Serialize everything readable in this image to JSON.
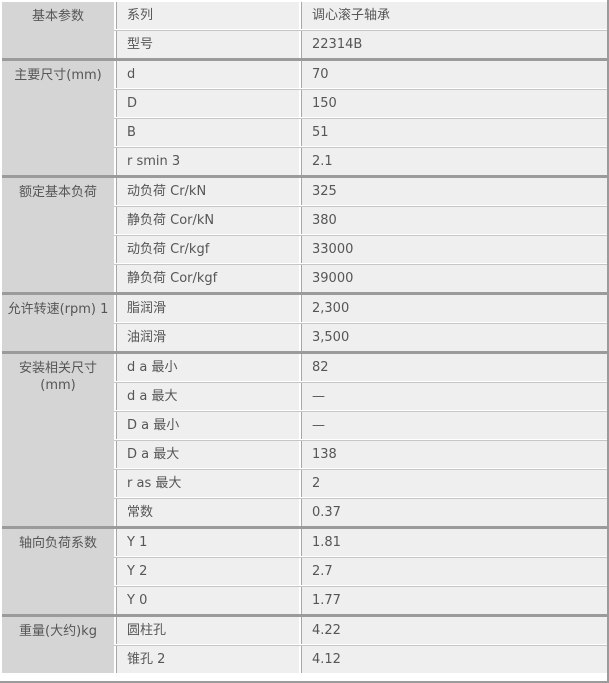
{
  "table": {
    "title": "bearing-spec-table",
    "product": {
      "series": "调心滚子轴承",
      "model": "22314B"
    },
    "colors": {
      "category_bg": "#d5d5d5",
      "cell_bg": "#efefef",
      "section_divider": "#9b9b9b",
      "row_divider": "#c6c6c6",
      "column_divider": "#a7a7a7",
      "text": "#565656",
      "gap": "#ffffff"
    },
    "sections": [
      {
        "category": "基本参数",
        "rows": [
          {
            "param": "系列",
            "value": "调心滚子轴承"
          },
          {
            "param": "型号",
            "value": "22314B"
          }
        ]
      },
      {
        "category": "主要尺寸(mm)",
        "rows": [
          {
            "param": "d",
            "value": "70"
          },
          {
            "param": "D",
            "value": "150"
          },
          {
            "param": "B",
            "value": "51"
          },
          {
            "param": "r smin 3",
            "value": "2.1"
          }
        ]
      },
      {
        "category": "额定基本负荷",
        "rows": [
          {
            "param": "动负荷 Cr/kN",
            "value": "325"
          },
          {
            "param": "静负荷 Cor/kN",
            "value": "380"
          },
          {
            "param": "动负荷 Cr/kgf",
            "value": "33000"
          },
          {
            "param": "静负荷 Cor/kgf",
            "value": "39000"
          }
        ]
      },
      {
        "category": "允许转速(rpm) 1",
        "rows": [
          {
            "param": "脂润滑",
            "value": "2,300"
          },
          {
            "param": "油润滑",
            "value": "3,500"
          }
        ]
      },
      {
        "category": "安装相关尺寸 (mm)",
        "rows": [
          {
            "param": "d a 最小",
            "value": "82"
          },
          {
            "param": "d a 最大",
            "value": "—"
          },
          {
            "param": "D a 最小",
            "value": "—"
          },
          {
            "param": "D a 最大",
            "value": "138"
          },
          {
            "param": "r as 最大",
            "value": "2"
          },
          {
            "param": "常数",
            "value": "0.37"
          }
        ]
      },
      {
        "category": "轴向负荷系数",
        "rows": [
          {
            "param": "Y 1",
            "value": "1.81"
          },
          {
            "param": "Y 2",
            "value": "2.7"
          },
          {
            "param": "Y 0",
            "value": "1.77"
          }
        ]
      },
      {
        "category": "重量(大约)kg",
        "rows": [
          {
            "param": "圆柱孔",
            "value": "4.22"
          },
          {
            "param": "锥孔 2",
            "value": "4.12"
          }
        ]
      }
    ]
  }
}
